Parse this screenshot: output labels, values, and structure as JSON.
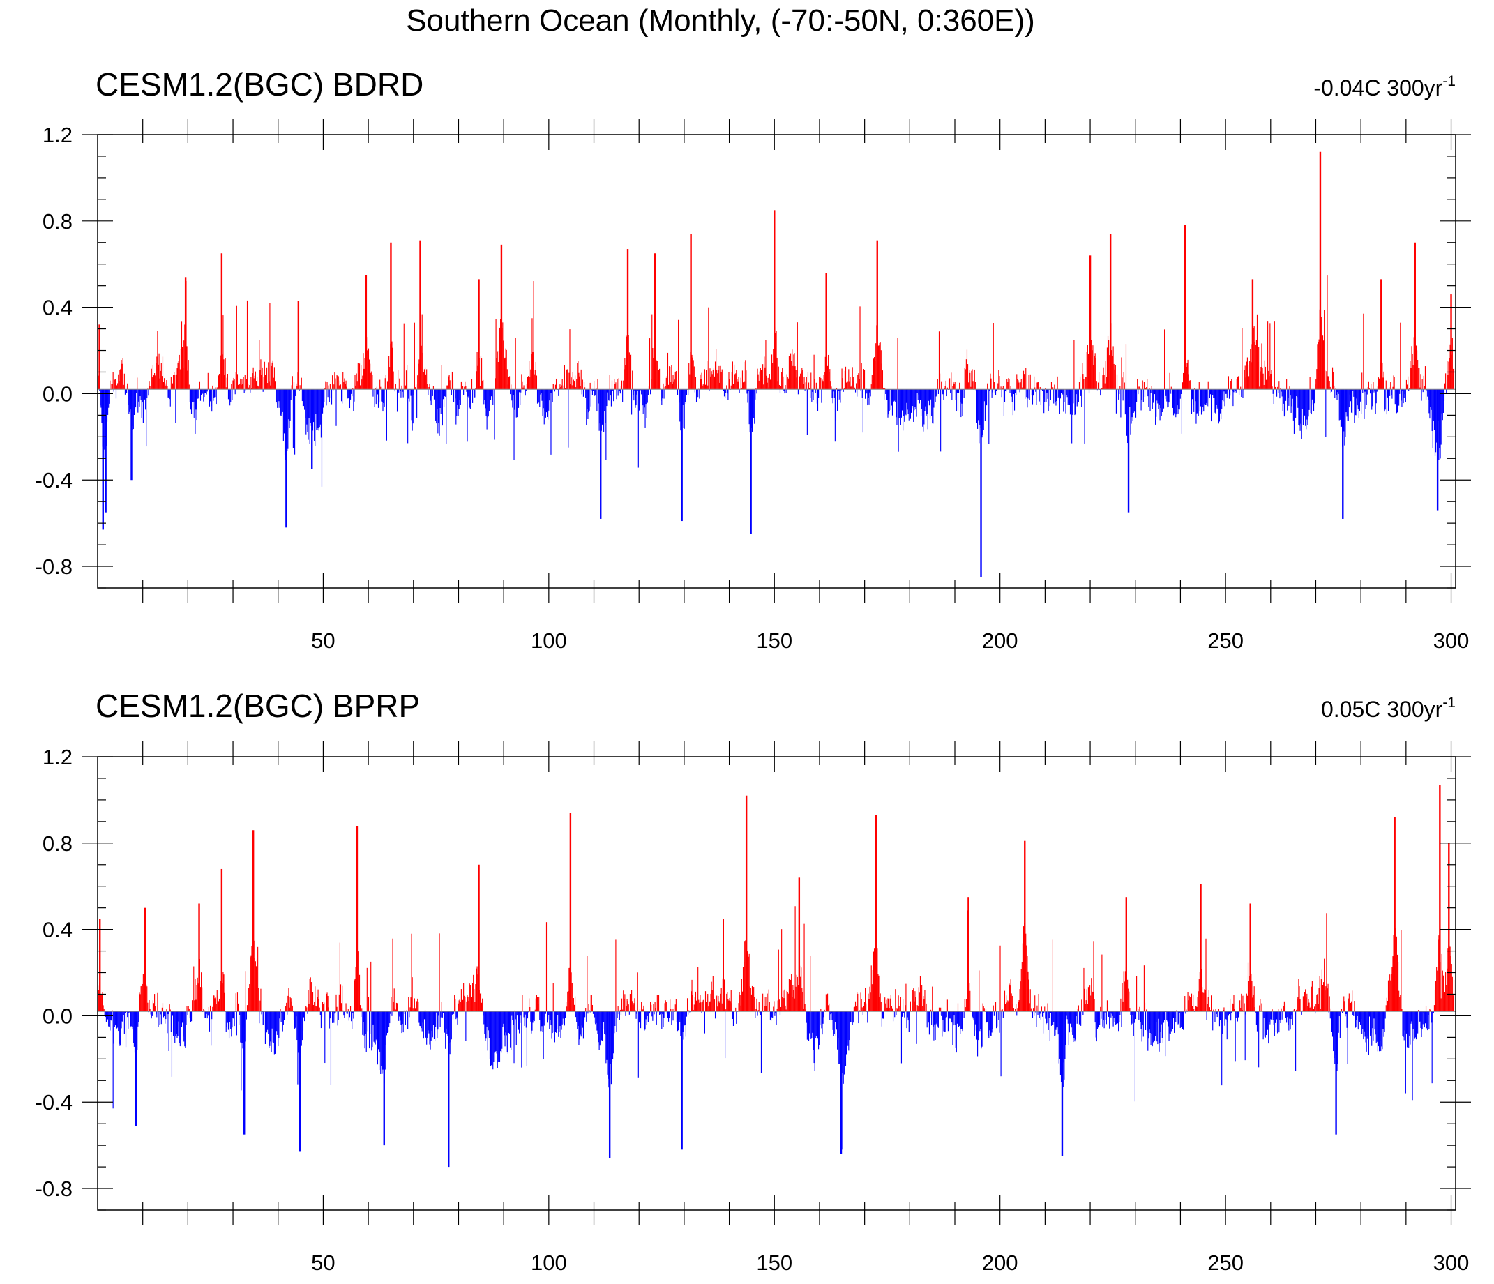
{
  "figure": {
    "title": "Southern Ocean (Monthly, (-70:-50N, 0:360E))"
  },
  "colors": {
    "positive": "#ff0000",
    "negative": "#0000ff",
    "axis": "#000000"
  },
  "chart_data": [
    {
      "type": "bar",
      "title": "CESM1.2(BGC) BDRD",
      "trend": {
        "value": "-0.04C 300yr",
        "exponent": "-1"
      },
      "xlim": [
        0,
        301
      ],
      "ylim": [
        -0.9,
        1.2
      ],
      "xticks": [
        50,
        100,
        150,
        200,
        250,
        300
      ],
      "yticks": [
        1.2,
        0.8,
        0.4,
        0.0,
        -0.4,
        -0.8
      ],
      "ytick_labels": [
        "1.2",
        "0.8",
        "0.4",
        "0.0",
        "-0.4",
        "-0.8"
      ],
      "baseline": 0.02,
      "grid": false,
      "notable_peaks": [
        {
          "x": 0.4,
          "y": 0.32
        },
        {
          "x": 1.2,
          "y": -0.63
        },
        {
          "x": 1.8,
          "y": -0.55
        },
        {
          "x": 7.5,
          "y": -0.4
        },
        {
          "x": 19.5,
          "y": 0.54
        },
        {
          "x": 27.5,
          "y": 0.65
        },
        {
          "x": 41.8,
          "y": -0.62
        },
        {
          "x": 44.5,
          "y": 0.43
        },
        {
          "x": 47.5,
          "y": -0.35
        },
        {
          "x": 59.5,
          "y": 0.55
        },
        {
          "x": 65.0,
          "y": 0.7
        },
        {
          "x": 71.5,
          "y": 0.71
        },
        {
          "x": 84.5,
          "y": 0.53
        },
        {
          "x": 89.5,
          "y": 0.69
        },
        {
          "x": 111.5,
          "y": -0.58
        },
        {
          "x": 117.5,
          "y": 0.67
        },
        {
          "x": 123.5,
          "y": 0.65
        },
        {
          "x": 129.5,
          "y": -0.59
        },
        {
          "x": 131.5,
          "y": 0.74
        },
        {
          "x": 144.8,
          "y": -0.65
        },
        {
          "x": 150.0,
          "y": 0.85
        },
        {
          "x": 161.5,
          "y": 0.56
        },
        {
          "x": 172.8,
          "y": 0.71
        },
        {
          "x": 195.8,
          "y": -0.85
        },
        {
          "x": 220.0,
          "y": 0.64
        },
        {
          "x": 224.5,
          "y": 0.74
        },
        {
          "x": 228.5,
          "y": -0.55
        },
        {
          "x": 241.0,
          "y": 0.78
        },
        {
          "x": 256.0,
          "y": 0.53
        },
        {
          "x": 271.0,
          "y": 1.12
        },
        {
          "x": 276.0,
          "y": -0.58
        },
        {
          "x": 284.5,
          "y": 0.53
        },
        {
          "x": 292.0,
          "y": 0.7
        },
        {
          "x": 297.0,
          "y": -0.54
        },
        {
          "x": 300.0,
          "y": 0.46
        }
      ]
    },
    {
      "type": "bar",
      "title": "CESM1.2(BGC) BPRP",
      "trend": {
        "value": "0.05C 300yr",
        "exponent": "-1"
      },
      "xlim": [
        0,
        301
      ],
      "ylim": [
        -0.9,
        1.2
      ],
      "xticks": [
        50,
        100,
        150,
        200,
        250,
        300
      ],
      "yticks": [
        1.2,
        0.8,
        0.4,
        0.0,
        -0.4,
        -0.8
      ],
      "ytick_labels": [
        "1.2",
        "0.8",
        "0.4",
        "0.0",
        "-0.4",
        "-0.8"
      ],
      "baseline": 0.02,
      "grid": false,
      "notable_peaks": [
        {
          "x": 0.5,
          "y": 0.45
        },
        {
          "x": 8.5,
          "y": -0.51
        },
        {
          "x": 10.5,
          "y": 0.5
        },
        {
          "x": 22.5,
          "y": 0.52
        },
        {
          "x": 27.5,
          "y": 0.68
        },
        {
          "x": 32.5,
          "y": -0.55
        },
        {
          "x": 34.5,
          "y": 0.86
        },
        {
          "x": 44.8,
          "y": -0.63
        },
        {
          "x": 57.5,
          "y": 0.88
        },
        {
          "x": 63.5,
          "y": -0.6
        },
        {
          "x": 77.8,
          "y": -0.7
        },
        {
          "x": 84.5,
          "y": 0.7
        },
        {
          "x": 104.8,
          "y": 0.94
        },
        {
          "x": 113.5,
          "y": -0.66
        },
        {
          "x": 129.5,
          "y": -0.62
        },
        {
          "x": 143.8,
          "y": 1.02
        },
        {
          "x": 155.5,
          "y": 0.64
        },
        {
          "x": 164.8,
          "y": -0.64
        },
        {
          "x": 172.5,
          "y": 0.93
        },
        {
          "x": 193.0,
          "y": 0.55
        },
        {
          "x": 205.5,
          "y": 0.81
        },
        {
          "x": 213.8,
          "y": -0.65
        },
        {
          "x": 228.0,
          "y": 0.55
        },
        {
          "x": 244.5,
          "y": 0.61
        },
        {
          "x": 255.5,
          "y": 0.52
        },
        {
          "x": 274.5,
          "y": -0.55
        },
        {
          "x": 287.5,
          "y": 0.92
        },
        {
          "x": 297.5,
          "y": 1.07
        },
        {
          "x": 299.5,
          "y": 0.8
        }
      ]
    }
  ]
}
